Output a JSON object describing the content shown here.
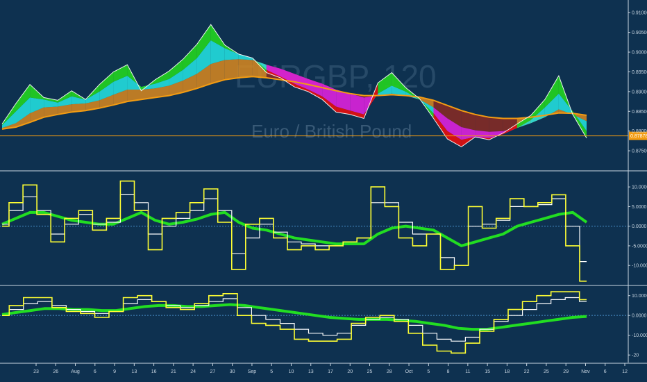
{
  "watermark": {
    "symbol": "EURGBP, 120",
    "name": "Euro / British Pound"
  },
  "colors": {
    "background": "#0e3150",
    "axis_text": "#c9d6e2",
    "price_line": "#f39c12",
    "oscillator_fast": "#ffff33",
    "oscillator_mid": "#ffffff",
    "oscillator_slow": "#22dd22",
    "band_green": "#22cc22",
    "band_cyan": "#22dddd",
    "band_orange": "#d9881e",
    "band_red": "#dd1111",
    "band_magenta": "#dd22dd",
    "band_brown": "#8a2a22"
  },
  "price_tag": "0.87878",
  "chart_data": [
    {
      "type": "line",
      "title": "",
      "x_tick_labels": [
        "23",
        "26",
        "Aug",
        "6",
        "9",
        "13",
        "16",
        "21",
        "24",
        "27",
        "30",
        "Sep",
        "5",
        "10",
        "13",
        "17",
        "20",
        "25",
        "28",
        "Oct",
        "5",
        "8",
        "11",
        "15",
        "18",
        "22",
        "25",
        "29",
        "Nov",
        "6",
        "12"
      ],
      "y_tick_labels": [
        "0.91000",
        "0.90500",
        "0.90000",
        "0.89500",
        "0.89000",
        "0.88500",
        "0.88000",
        "0.87500"
      ],
      "ylim": [
        0.8715,
        0.9118
      ],
      "price_line_value": 0.87878,
      "series": [
        {
          "values": [
            0.8818,
            0.887,
            0.8918,
            0.8885,
            0.8878,
            0.8902,
            0.888,
            0.8918,
            0.895,
            0.8968,
            0.8902,
            0.893,
            0.8952,
            0.8982,
            0.902,
            0.907,
            0.9018,
            0.8995,
            0.8985,
            0.8948,
            0.8935,
            0.8912,
            0.89,
            0.888,
            0.8848,
            0.8842,
            0.8832,
            0.8922,
            0.8948,
            0.891,
            0.8882,
            0.8832,
            0.878,
            0.876,
            0.8785,
            0.8778,
            0.8795,
            0.8818,
            0.884,
            0.888,
            0.894,
            0.8842,
            0.8782
          ]
        },
        {
          "values": [
            0.8815,
            0.885,
            0.8885,
            0.888,
            0.8872,
            0.8888,
            0.888,
            0.89,
            0.8925,
            0.894,
            0.8912,
            0.892,
            0.8932,
            0.8955,
            0.8985,
            0.903,
            0.901,
            0.8995,
            0.8985,
            0.8955,
            0.8938,
            0.892,
            0.8905,
            0.8888,
            0.8862,
            0.8852,
            0.8842,
            0.8895,
            0.8915,
            0.89,
            0.888,
            0.8845,
            0.88,
            0.8778,
            0.8785,
            0.8782,
            0.8792,
            0.8808,
            0.8828,
            0.886,
            0.8895,
            0.885,
            0.88
          ]
        },
        {
          "values": [
            0.8808,
            0.882,
            0.8845,
            0.886,
            0.8862,
            0.8868,
            0.887,
            0.8878,
            0.8892,
            0.8905,
            0.8905,
            0.8908,
            0.8915,
            0.8928,
            0.8945,
            0.897,
            0.898,
            0.8982,
            0.898,
            0.8968,
            0.8958,
            0.8945,
            0.8932,
            0.892,
            0.8905,
            0.8895,
            0.8885,
            0.889,
            0.8895,
            0.889,
            0.888,
            0.886,
            0.8832,
            0.881,
            0.8802,
            0.8798,
            0.88,
            0.8808,
            0.882,
            0.8835,
            0.8855,
            0.8842,
            0.8825
          ]
        },
        {
          "values": [
            0.8805,
            0.881,
            0.8822,
            0.8835,
            0.8842,
            0.8848,
            0.8852,
            0.8858,
            0.8866,
            0.8875,
            0.888,
            0.8885,
            0.889,
            0.8898,
            0.8908,
            0.892,
            0.893,
            0.8935,
            0.8938,
            0.8935,
            0.893,
            0.8925,
            0.8918,
            0.891,
            0.8902,
            0.8895,
            0.889,
            0.889,
            0.8892,
            0.889,
            0.8886,
            0.8878,
            0.8865,
            0.8852,
            0.8842,
            0.8835,
            0.8832,
            0.8832,
            0.8835,
            0.884,
            0.8846,
            0.8845,
            0.884
          ]
        }
      ]
    },
    {
      "type": "line",
      "title": "",
      "y_tick_labels": [
        "10.0000",
        "5.0000",
        "0.0000",
        "-5.0000",
        "-10.0000"
      ],
      "ylim": [
        -13.5,
        12.5
      ],
      "zero_line": 0,
      "series": [
        {
          "values": [
            0.0,
            6.0,
            10.5,
            3.0,
            -4.0,
            2.0,
            4.0,
            -1.0,
            2.0,
            11.5,
            4.0,
            -6.0,
            2.0,
            3.5,
            6.0,
            9.5,
            1.0,
            -11.0,
            0.5,
            2.0,
            -3.0,
            -6.0,
            -5.0,
            -6.0,
            -5.0,
            -4.0,
            -3.0,
            10.0,
            5.0,
            -3.0,
            -5.0,
            -2.0,
            -11.0,
            -10.0,
            5.0,
            -0.5,
            2.0,
            7.0,
            5.0,
            6.0,
            8.0,
            -5.0,
            -14.0
          ]
        },
        {
          "values": [
            0.5,
            4.0,
            7.5,
            4.0,
            -2.0,
            0.5,
            3.0,
            0.5,
            1.0,
            8.0,
            6.0,
            -2.0,
            0.0,
            2.0,
            4.0,
            7.0,
            4.0,
            -7.0,
            -3.0,
            0.5,
            -1.5,
            -4.0,
            -4.5,
            -5.0,
            -5.0,
            -4.0,
            -3.0,
            6.0,
            6.0,
            1.0,
            -2.0,
            -2.0,
            -8.0,
            -10.0,
            0.0,
            0.5,
            1.5,
            5.0,
            5.0,
            5.5,
            7.0,
            0.0,
            -9.0
          ]
        },
        {
          "values": [
            0.5,
            2.0,
            3.5,
            3.5,
            2.5,
            1.5,
            1.0,
            0.5,
            0.5,
            2.0,
            3.5,
            1.5,
            0.5,
            1.0,
            1.8,
            3.0,
            3.5,
            1.0,
            -0.5,
            -1.0,
            -2.0,
            -3.0,
            -3.5,
            -4.0,
            -4.5,
            -4.5,
            -4.5,
            -2.0,
            -0.5,
            0.0,
            -0.5,
            -1.0,
            -3.0,
            -5.0,
            -4.0,
            -3.0,
            -2.0,
            0.0,
            1.0,
            2.0,
            3.0,
            3.5,
            1.0
          ]
        }
      ]
    },
    {
      "type": "line",
      "title": "",
      "x_tick_labels": [
        "23",
        "26",
        "Aug",
        "6",
        "9",
        "13",
        "16",
        "21",
        "24",
        "27",
        "30",
        "Sep",
        "5",
        "10",
        "13",
        "17",
        "20",
        "25",
        "28",
        "Oct",
        "5",
        "8",
        "11",
        "15",
        "18",
        "22",
        "25",
        "29",
        "Nov",
        "6",
        "12"
      ],
      "y_tick_labels": [
        "10.0000",
        "0.0000",
        "-10.0000",
        "-20"
      ],
      "ylim": [
        -21,
        12
      ],
      "zero_line": 0,
      "series": [
        {
          "values": [
            0.0,
            5.0,
            9.0,
            9.0,
            4.0,
            2.0,
            1.0,
            -1.0,
            2.0,
            9.0,
            10.0,
            7.0,
            4.0,
            3.0,
            6.0,
            10.0,
            11.0,
            0.0,
            -4.0,
            -5.0,
            -7.0,
            -12.0,
            -13.0,
            -13.0,
            -12.0,
            -4.0,
            -1.0,
            0.0,
            -3.0,
            -9.0,
            -15.0,
            -18.0,
            -19.0,
            -14.0,
            -8.0,
            -2.0,
            3.0,
            7.0,
            10.0,
            12.0,
            12.0,
            8.0
          ]
        },
        {
          "values": [
            0.0,
            3.0,
            6.0,
            7.0,
            5.0,
            3.0,
            2.0,
            1.0,
            2.0,
            6.0,
            8.0,
            7.0,
            5.0,
            4.0,
            5.0,
            7.0,
            8.5,
            4.0,
            0.0,
            -2.0,
            -4.0,
            -7.0,
            -9.0,
            -10.0,
            -9.0,
            -5.0,
            -2.0,
            -1.0,
            -2.0,
            -5.0,
            -9.0,
            -12.0,
            -13.0,
            -11.0,
            -7.0,
            -3.0,
            0.0,
            3.0,
            6.0,
            8.0,
            9.0,
            7.0
          ]
        },
        {
          "values": [
            0.5,
            1.5,
            2.5,
            3.5,
            3.5,
            3.0,
            3.0,
            2.5,
            2.5,
            3.5,
            4.5,
            5.0,
            5.0,
            4.5,
            4.5,
            5.0,
            5.5,
            5.0,
            4.0,
            3.0,
            2.0,
            1.0,
            0.0,
            -1.0,
            -1.5,
            -2.0,
            -2.0,
            -2.0,
            -2.5,
            -3.0,
            -4.0,
            -5.0,
            -6.5,
            -7.0,
            -7.0,
            -6.0,
            -5.0,
            -4.0,
            -3.0,
            -2.0,
            -1.0,
            -0.5
          ]
        }
      ]
    }
  ]
}
